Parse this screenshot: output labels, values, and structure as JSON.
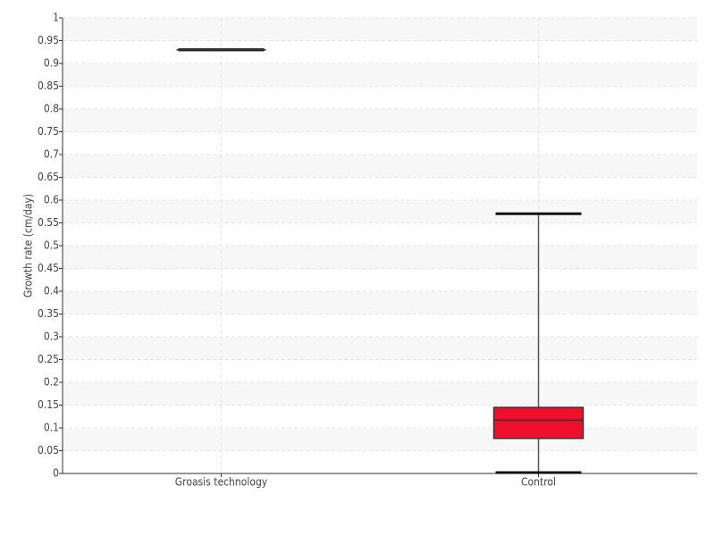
{
  "chart_data": {
    "type": "box",
    "y_label": "Growth rate (cm/day)",
    "categories": [
      "Groasis technology",
      "Control"
    ],
    "boxes": [
      {
        "min": 0.93,
        "q1": 0.93,
        "median": 0.93,
        "q3": 0.93,
        "max": 0.93,
        "color": "#111111"
      },
      {
        "min": 0.002,
        "q1": 0.077,
        "median": 0.117,
        "q3": 0.145,
        "max": 0.57,
        "color": "#f0102e"
      }
    ],
    "ylim": [
      0,
      1
    ],
    "yticks": [
      0,
      0.05,
      0.1,
      0.15,
      0.2,
      0.25,
      0.3,
      0.35,
      0.4,
      0.45,
      0.5,
      0.55,
      0.6,
      0.65,
      0.7,
      0.75,
      0.8,
      0.85,
      0.9,
      0.95,
      1
    ],
    "grid": true
  }
}
